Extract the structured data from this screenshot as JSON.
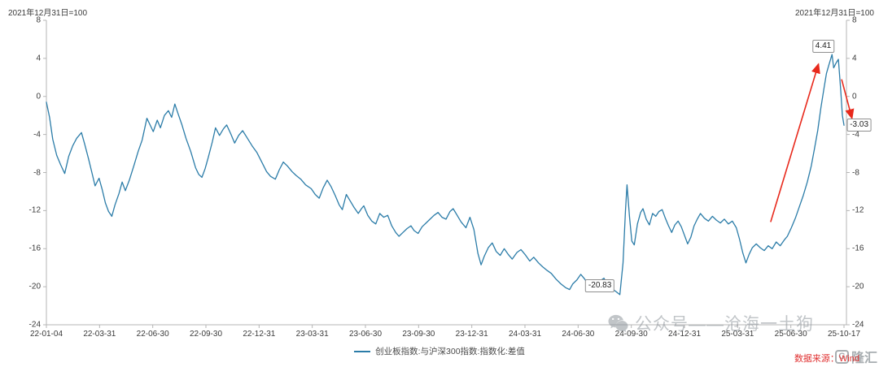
{
  "meta": {
    "note_left": "2021年12月31日=100",
    "note_right": "2021年12月31日=100"
  },
  "legend": {
    "label": "创业板指数:与沪深300指数:指数化:差值",
    "color": "#2b7ca8"
  },
  "watermark": {
    "text": "公众号——沧海一土狗",
    "color": "#8f969c"
  },
  "source": {
    "text": "数据来源：Wind",
    "color": "#e03131"
  },
  "logo": {
    "badge": "G",
    "text": "隆汇"
  },
  "chart_data": {
    "type": "line",
    "title": "",
    "xlabel": "",
    "ylabel": "",
    "ylim": [
      -24,
      8
    ],
    "grid": false,
    "legend_position": "bottom-center",
    "y_ticks": [
      8,
      4,
      0,
      -4,
      -8,
      -12,
      -16,
      -20,
      -24
    ],
    "x_tick_labels": [
      "22-01-04",
      "22-03-31",
      "22-06-30",
      "22-09-30",
      "22-12-31",
      "23-03-31",
      "23-06-30",
      "23-09-30",
      "23-12-31",
      "24-03-31",
      "24-06-30",
      "24-09-30",
      "24-12-31",
      "25-03-31",
      "25-06-30",
      "25-10-17"
    ],
    "series": [
      {
        "name": "创业板指数:与沪深300指数:指数化:差值",
        "color": "#2b7ca8",
        "points": [
          [
            0.0,
            -0.6
          ],
          [
            0.004,
            -2.2
          ],
          [
            0.008,
            -4.5
          ],
          [
            0.013,
            -6.2
          ],
          [
            0.018,
            -7.2
          ],
          [
            0.023,
            -8.1
          ],
          [
            0.028,
            -6.3
          ],
          [
            0.033,
            -5.2
          ],
          [
            0.038,
            -4.4
          ],
          [
            0.044,
            -3.8
          ],
          [
            0.048,
            -5.0
          ],
          [
            0.053,
            -6.6
          ],
          [
            0.057,
            -8.0
          ],
          [
            0.061,
            -9.4
          ],
          [
            0.066,
            -8.6
          ],
          [
            0.07,
            -9.8
          ],
          [
            0.074,
            -11.2
          ],
          [
            0.078,
            -12.1
          ],
          [
            0.082,
            -12.6
          ],
          [
            0.086,
            -11.4
          ],
          [
            0.091,
            -10.2
          ],
          [
            0.095,
            -9.0
          ],
          [
            0.099,
            -9.9
          ],
          [
            0.104,
            -8.8
          ],
          [
            0.11,
            -7.2
          ],
          [
            0.115,
            -5.8
          ],
          [
            0.12,
            -4.6
          ],
          [
            0.126,
            -2.3
          ],
          [
            0.13,
            -3.0
          ],
          [
            0.134,
            -3.7
          ],
          [
            0.139,
            -2.5
          ],
          [
            0.143,
            -3.3
          ],
          [
            0.148,
            -2.0
          ],
          [
            0.153,
            -1.5
          ],
          [
            0.157,
            -2.2
          ],
          [
            0.161,
            -0.8
          ],
          [
            0.165,
            -1.8
          ],
          [
            0.17,
            -3.0
          ],
          [
            0.175,
            -4.4
          ],
          [
            0.181,
            -5.8
          ],
          [
            0.187,
            -7.5
          ],
          [
            0.191,
            -8.2
          ],
          [
            0.195,
            -8.5
          ],
          [
            0.199,
            -7.6
          ],
          [
            0.203,
            -6.4
          ],
          [
            0.208,
            -4.8
          ],
          [
            0.212,
            -3.3
          ],
          [
            0.217,
            -4.1
          ],
          [
            0.222,
            -3.4
          ],
          [
            0.226,
            -3.0
          ],
          [
            0.231,
            -3.9
          ],
          [
            0.236,
            -4.9
          ],
          [
            0.241,
            -4.1
          ],
          [
            0.246,
            -3.6
          ],
          [
            0.252,
            -4.4
          ],
          [
            0.258,
            -5.2
          ],
          [
            0.264,
            -5.9
          ],
          [
            0.27,
            -6.9
          ],
          [
            0.276,
            -7.9
          ],
          [
            0.281,
            -8.4
          ],
          [
            0.287,
            -8.7
          ],
          [
            0.292,
            -7.7
          ],
          [
            0.297,
            -6.9
          ],
          [
            0.302,
            -7.3
          ],
          [
            0.308,
            -7.9
          ],
          [
            0.313,
            -8.3
          ],
          [
            0.319,
            -8.7
          ],
          [
            0.325,
            -9.3
          ],
          [
            0.332,
            -9.7
          ],
          [
            0.337,
            -10.3
          ],
          [
            0.342,
            -10.7
          ],
          [
            0.347,
            -9.6
          ],
          [
            0.352,
            -8.8
          ],
          [
            0.357,
            -9.5
          ],
          [
            0.362,
            -10.4
          ],
          [
            0.367,
            -11.4
          ],
          [
            0.371,
            -11.9
          ],
          [
            0.376,
            -10.3
          ],
          [
            0.381,
            -11.0
          ],
          [
            0.386,
            -11.7
          ],
          [
            0.391,
            -12.3
          ],
          [
            0.395,
            -11.8
          ],
          [
            0.398,
            -11.5
          ],
          [
            0.403,
            -12.5
          ],
          [
            0.408,
            -13.1
          ],
          [
            0.413,
            -13.4
          ],
          [
            0.418,
            -12.3
          ],
          [
            0.423,
            -12.7
          ],
          [
            0.428,
            -12.5
          ],
          [
            0.433,
            -13.6
          ],
          [
            0.438,
            -14.3
          ],
          [
            0.442,
            -14.7
          ],
          [
            0.447,
            -14.3
          ],
          [
            0.452,
            -13.9
          ],
          [
            0.457,
            -13.6
          ],
          [
            0.461,
            -14.1
          ],
          [
            0.466,
            -14.4
          ],
          [
            0.471,
            -13.7
          ],
          [
            0.476,
            -13.3
          ],
          [
            0.481,
            -12.9
          ],
          [
            0.486,
            -12.5
          ],
          [
            0.491,
            -12.2
          ],
          [
            0.496,
            -12.7
          ],
          [
            0.501,
            -12.9
          ],
          [
            0.506,
            -12.1
          ],
          [
            0.51,
            -11.8
          ],
          [
            0.515,
            -12.5
          ],
          [
            0.52,
            -13.2
          ],
          [
            0.526,
            -13.8
          ],
          [
            0.531,
            -12.7
          ],
          [
            0.536,
            -14.0
          ],
          [
            0.541,
            -16.5
          ],
          [
            0.545,
            -17.7
          ],
          [
            0.549,
            -16.8
          ],
          [
            0.554,
            -15.9
          ],
          [
            0.559,
            -15.4
          ],
          [
            0.564,
            -16.3
          ],
          [
            0.569,
            -16.7
          ],
          [
            0.574,
            -16.0
          ],
          [
            0.579,
            -16.6
          ],
          [
            0.584,
            -17.1
          ],
          [
            0.59,
            -16.4
          ],
          [
            0.595,
            -16.1
          ],
          [
            0.6,
            -16.6
          ],
          [
            0.606,
            -17.3
          ],
          [
            0.611,
            -16.9
          ],
          [
            0.617,
            -17.5
          ],
          [
            0.622,
            -17.9
          ],
          [
            0.628,
            -18.3
          ],
          [
            0.633,
            -18.6
          ],
          [
            0.639,
            -19.2
          ],
          [
            0.645,
            -19.7
          ],
          [
            0.651,
            -20.1
          ],
          [
            0.656,
            -20.3
          ],
          [
            0.66,
            -19.7
          ],
          [
            0.665,
            -19.3
          ],
          [
            0.67,
            -18.7
          ],
          [
            0.675,
            -19.2
          ],
          [
            0.68,
            -19.9
          ],
          [
            0.684,
            -20.3
          ],
          [
            0.689,
            -19.8
          ],
          [
            0.694,
            -19.4
          ],
          [
            0.699,
            -19.1
          ],
          [
            0.704,
            -19.8
          ],
          [
            0.709,
            -20.2
          ],
          [
            0.714,
            -20.5
          ],
          [
            0.719,
            -20.83
          ],
          [
            0.723,
            -17.5
          ],
          [
            0.726,
            -12.0
          ],
          [
            0.728,
            -9.3
          ],
          [
            0.731,
            -12.6
          ],
          [
            0.734,
            -15.2
          ],
          [
            0.737,
            -15.6
          ],
          [
            0.741,
            -13.4
          ],
          [
            0.745,
            -12.2
          ],
          [
            0.748,
            -11.8
          ],
          [
            0.752,
            -12.9
          ],
          [
            0.756,
            -13.5
          ],
          [
            0.76,
            -12.3
          ],
          [
            0.764,
            -12.6
          ],
          [
            0.768,
            -12.1
          ],
          [
            0.772,
            -11.9
          ],
          [
            0.776,
            -12.8
          ],
          [
            0.78,
            -13.6
          ],
          [
            0.784,
            -14.3
          ],
          [
            0.788,
            -13.5
          ],
          [
            0.792,
            -13.1
          ],
          [
            0.796,
            -13.7
          ],
          [
            0.8,
            -14.6
          ],
          [
            0.804,
            -15.5
          ],
          [
            0.808,
            -14.8
          ],
          [
            0.812,
            -13.6
          ],
          [
            0.816,
            -12.9
          ],
          [
            0.82,
            -12.3
          ],
          [
            0.825,
            -12.8
          ],
          [
            0.83,
            -13.1
          ],
          [
            0.835,
            -12.6
          ],
          [
            0.84,
            -13.0
          ],
          [
            0.845,
            -13.3
          ],
          [
            0.85,
            -12.9
          ],
          [
            0.855,
            -13.4
          ],
          [
            0.86,
            -13.1
          ],
          [
            0.865,
            -13.8
          ],
          [
            0.869,
            -15.0
          ],
          [
            0.873,
            -16.4
          ],
          [
            0.877,
            -17.5
          ],
          [
            0.881,
            -16.6
          ],
          [
            0.885,
            -15.9
          ],
          [
            0.89,
            -15.5
          ],
          [
            0.895,
            -15.9
          ],
          [
            0.9,
            -16.2
          ],
          [
            0.905,
            -15.7
          ],
          [
            0.91,
            -16.0
          ],
          [
            0.915,
            -15.3
          ],
          [
            0.92,
            -15.7
          ],
          [
            0.925,
            -15.1
          ],
          [
            0.929,
            -14.7
          ],
          [
            0.934,
            -13.8
          ],
          [
            0.939,
            -12.8
          ],
          [
            0.944,
            -11.6
          ],
          [
            0.949,
            -10.4
          ],
          [
            0.954,
            -9.0
          ],
          [
            0.959,
            -7.3
          ],
          [
            0.963,
            -5.5
          ],
          [
            0.967,
            -3.6
          ],
          [
            0.971,
            -1.2
          ],
          [
            0.975,
            0.9
          ],
          [
            0.978,
            2.4
          ],
          [
            0.981,
            3.3
          ],
          [
            0.985,
            4.41
          ],
          [
            0.987,
            3.0
          ],
          [
            0.99,
            3.5
          ],
          [
            0.993,
            3.9
          ],
          [
            0.996,
            0.5
          ],
          [
            0.998,
            -2.0
          ],
          [
            1.0,
            -3.03
          ]
        ]
      }
    ],
    "annotations": [
      {
        "label": "-20.83",
        "t": 0.694,
        "v": -19.9
      },
      {
        "label": "4.41",
        "t": 0.974,
        "v": 5.3
      },
      {
        "label": "-3.03",
        "t": 1.019,
        "v": -3.03
      }
    ],
    "arrows": [
      {
        "from": [
          0.908,
          -13.2
        ],
        "to": [
          0.968,
          3.4
        ]
      },
      {
        "from": [
          0.997,
          1.8
        ],
        "to": [
          1.01,
          -2.3
        ]
      }
    ],
    "arrow_color": "#e8291c"
  }
}
